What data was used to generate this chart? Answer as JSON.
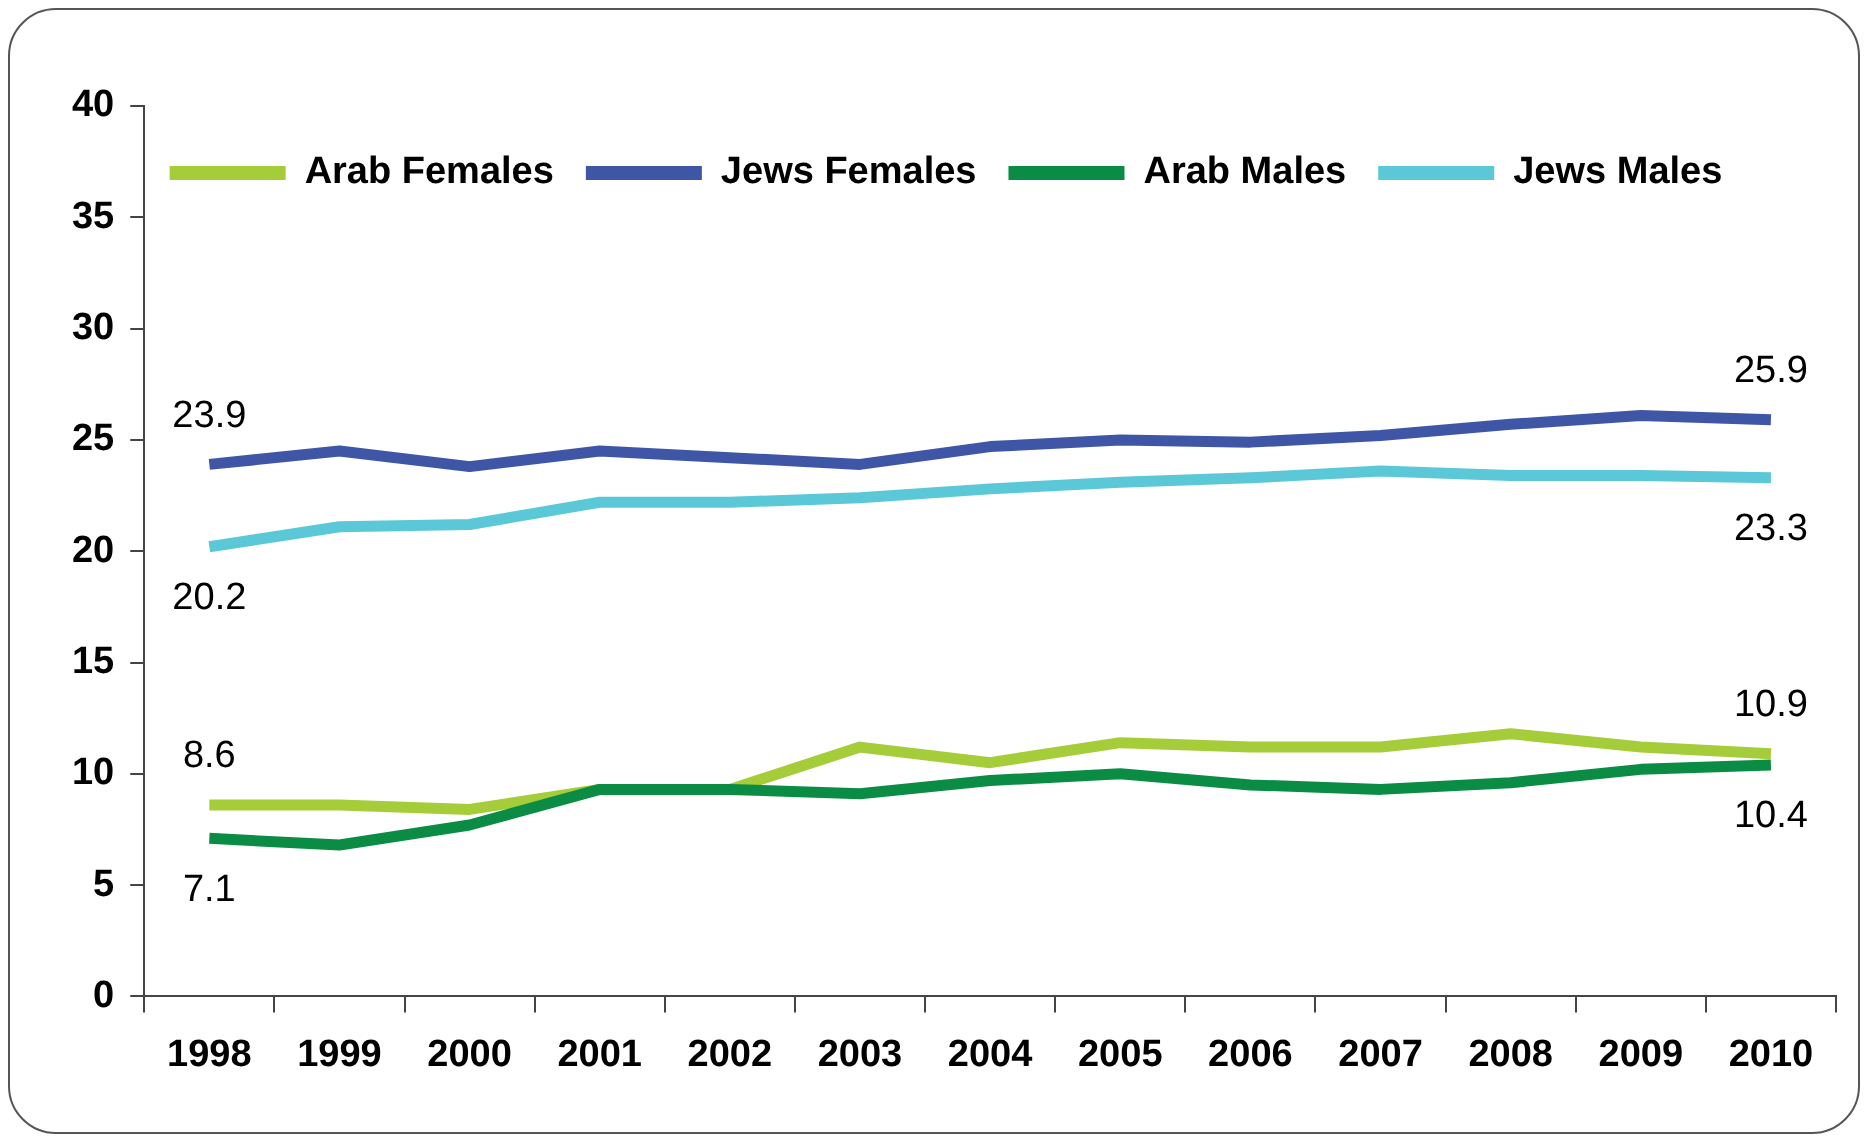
{
  "chart_data": {
    "type": "line",
    "categories": [
      "1998",
      "1999",
      "2000",
      "2001",
      "2002",
      "2003",
      "2004",
      "2005",
      "2006",
      "2007",
      "2008",
      "2009",
      "2010"
    ],
    "series": [
      {
        "name": "Arab Females",
        "color": "#a4cd39",
        "values": [
          8.6,
          8.6,
          8.4,
          9.3,
          9.3,
          11.2,
          10.5,
          11.4,
          11.2,
          11.2,
          11.8,
          11.2,
          10.9
        ],
        "value_labels": [
          "8.6",
          null,
          null,
          null,
          null,
          null,
          null,
          null,
          null,
          null,
          null,
          null,
          "10.9"
        ]
      },
      {
        "name": "Jews Females",
        "color": "#3f56a6",
        "values": [
          23.9,
          24.5,
          23.8,
          24.5,
          24.2,
          23.9,
          24.7,
          25.0,
          24.9,
          25.2,
          25.7,
          26.1,
          25.9
        ],
        "value_labels": [
          "23.9",
          null,
          null,
          null,
          null,
          null,
          null,
          null,
          null,
          null,
          null,
          null,
          "25.9"
        ]
      },
      {
        "name": "Arab Males",
        "color": "#0a8c45",
        "values": [
          7.1,
          6.8,
          7.7,
          9.3,
          9.3,
          9.1,
          9.7,
          10.0,
          9.5,
          9.3,
          9.6,
          10.2,
          10.4
        ],
        "value_labels": [
          "7.1",
          null,
          null,
          null,
          null,
          null,
          null,
          null,
          null,
          null,
          null,
          null,
          "10.4"
        ]
      },
      {
        "name": "Jews Males",
        "color": "#5bc8d8",
        "values": [
          20.2,
          21.1,
          21.2,
          22.2,
          22.2,
          22.4,
          22.8,
          23.1,
          23.3,
          23.6,
          23.4,
          23.4,
          23.3
        ],
        "value_labels": [
          "20.2",
          null,
          null,
          null,
          null,
          null,
          null,
          null,
          null,
          null,
          null,
          null,
          "23.3"
        ]
      }
    ],
    "ylim": [
      0,
      40
    ],
    "yticks": [
      0,
      5,
      10,
      15,
      20,
      25,
      30,
      35,
      40
    ],
    "grid": false,
    "legend": "top",
    "marker": "none",
    "line_style": "solid"
  }
}
